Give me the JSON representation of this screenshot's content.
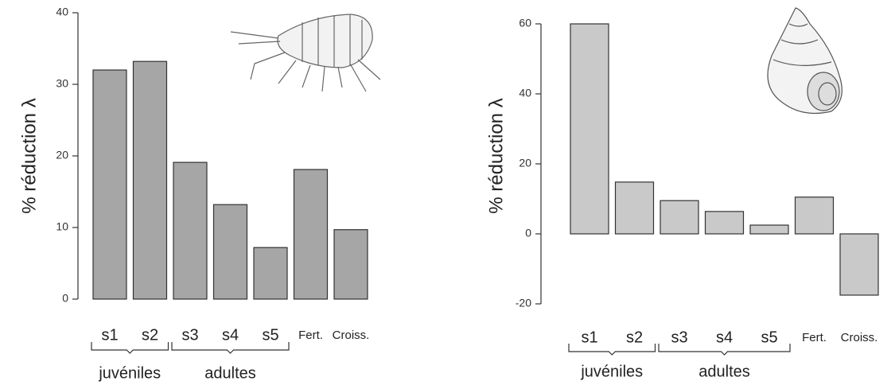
{
  "chart_data": [
    {
      "type": "bar",
      "ylabel": "% réduction λ",
      "categories": [
        "s1",
        "s2",
        "s3",
        "s4",
        "s5",
        "Fert.",
        "Croiss."
      ],
      "values": [
        32,
        33.2,
        19.1,
        13.2,
        7.2,
        18.1,
        9.7
      ],
      "color": "#a6a6a6",
      "ylim": [
        0,
        40
      ],
      "yticks": [
        0,
        10,
        20,
        30,
        40
      ],
      "groups": [
        "juvéniles",
        "adultes"
      ]
    },
    {
      "type": "bar",
      "ylabel": "% réduction λ",
      "categories": [
        "s1",
        "s2",
        "s3",
        "s4",
        "s5",
        "Fert.",
        "Croiss."
      ],
      "values": [
        60,
        14.8,
        9.5,
        6.4,
        2.5,
        10.5,
        -17.5
      ],
      "color": "#c9c9c9",
      "ylim": [
        -20,
        60
      ],
      "yticks": [
        -20,
        0,
        20,
        40,
        60
      ],
      "groups": [
        "juvéniles",
        "adultes"
      ]
    }
  ]
}
